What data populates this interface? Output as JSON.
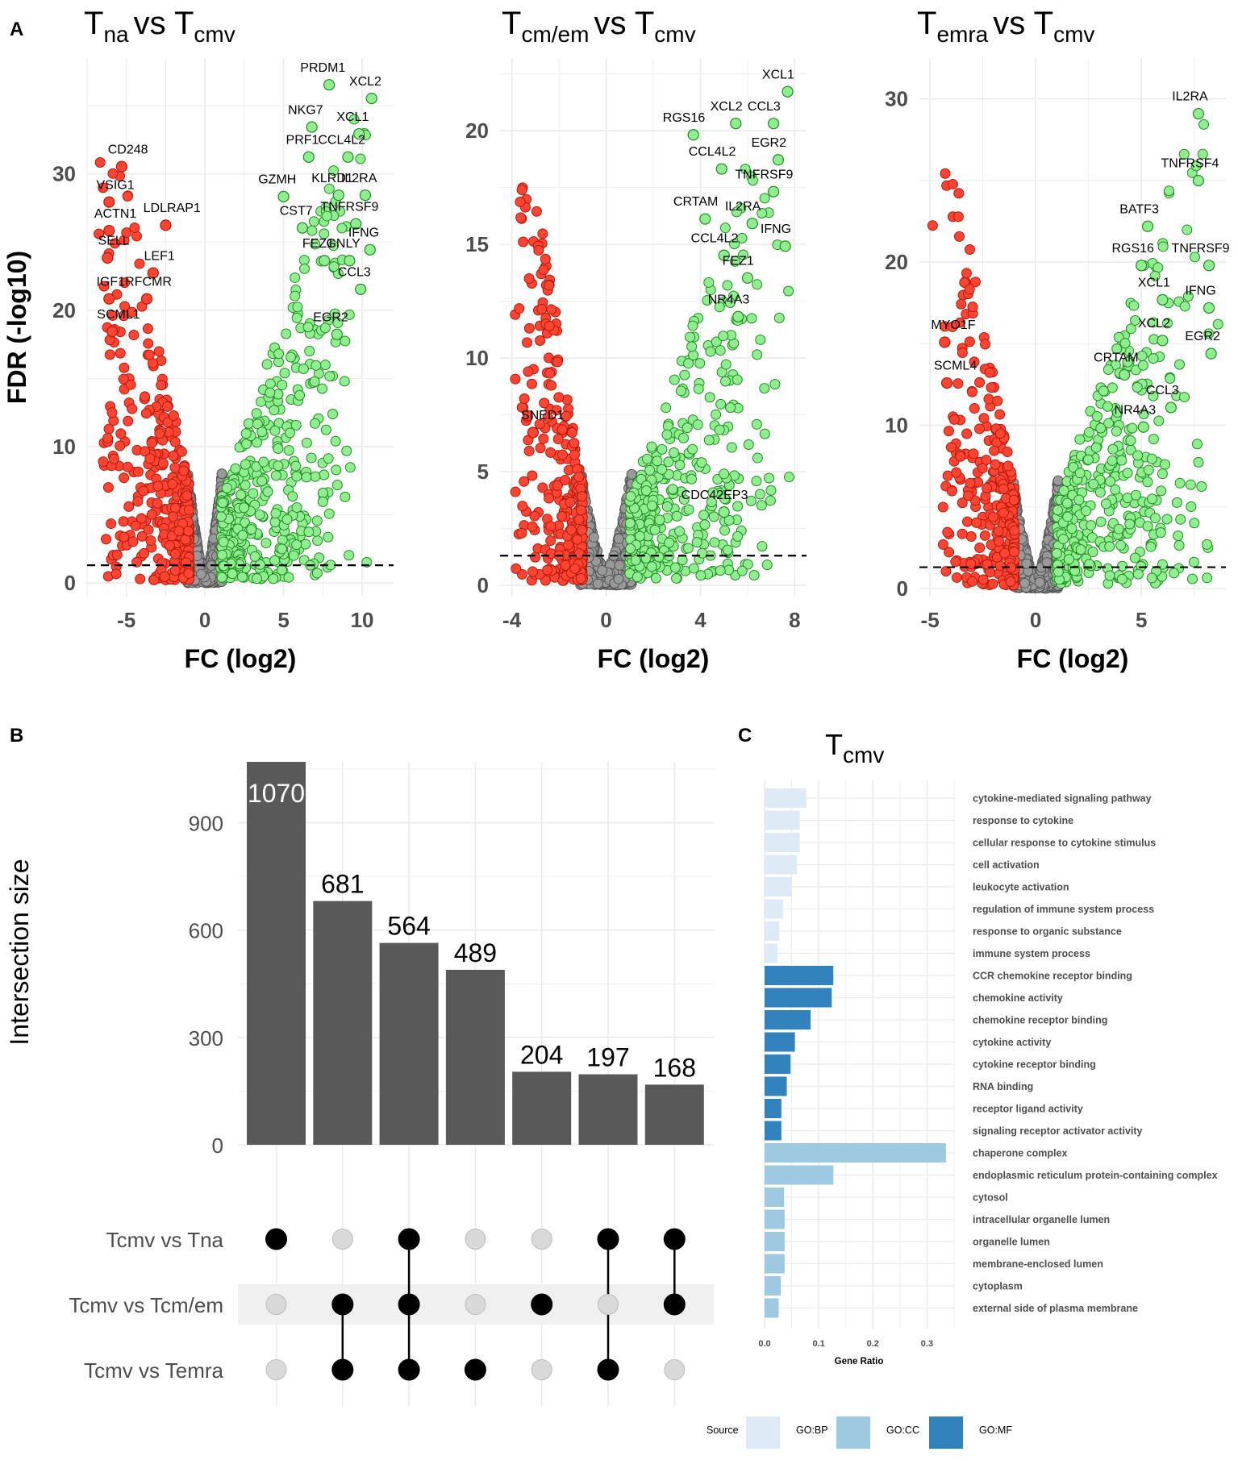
{
  "panel_labels": {
    "a": "A",
    "b": "B",
    "c": "C"
  },
  "volcano_common": {
    "ylabel": "FDR (-log10)",
    "xlabel": "FC (log2)",
    "colors": {
      "up": "#90EE90",
      "up_stroke": "#1e8c1e",
      "down": "#FF4433",
      "down_stroke": "#b01a0a",
      "ns": "#999999",
      "ns_stroke": "#555555",
      "threshold": "#000000"
    },
    "fdr_threshold": 1.3,
    "fc_threshold": 1
  },
  "chart_data": [
    {
      "type": "scatter",
      "id": "volcano-tna",
      "title": {
        "main": "T",
        "sub": "na",
        "vs": "vs T",
        "sub2": "cmv"
      },
      "xlim": [
        -7.5,
        12
      ],
      "ylim": [
        -1,
        38.5
      ],
      "xticks": [
        -5,
        0,
        5,
        10
      ],
      "yticks": [
        0,
        10,
        20,
        30
      ],
      "labels": [
        {
          "text": "PRDM1",
          "x": 7.5,
          "y": 37.5
        },
        {
          "text": "XCL2",
          "x": 10.2,
          "y": 36.5
        },
        {
          "text": "NKG7",
          "x": 6.4,
          "y": 34.4
        },
        {
          "text": "XCL1",
          "x": 9.4,
          "y": 33.9
        },
        {
          "text": "PRF1",
          "x": 6.2,
          "y": 32.2
        },
        {
          "text": "CCL4L2",
          "x": 8.7,
          "y": 32.2
        },
        {
          "text": "CD248",
          "x": -4.9,
          "y": 31.5
        },
        {
          "text": "GZMH",
          "x": 4.6,
          "y": 29.3
        },
        {
          "text": "KLRD1",
          "x": 8.1,
          "y": 29.4
        },
        {
          "text": "IL2RA",
          "x": 9.8,
          "y": 29.4
        },
        {
          "text": "VSIG1",
          "x": -5.7,
          "y": 28.9
        },
        {
          "text": "CST7",
          "x": 5.8,
          "y": 27.0
        },
        {
          "text": "TNFRSF9",
          "x": 9.2,
          "y": 27.3
        },
        {
          "text": "LDLRAP1",
          "x": -2.1,
          "y": 27.2
        },
        {
          "text": "ACTN1",
          "x": -5.7,
          "y": 26.8
        },
        {
          "text": "IFNG",
          "x": 10.1,
          "y": 25.4
        },
        {
          "text": "FEZ1",
          "x": 7.2,
          "y": 24.6
        },
        {
          "text": "GNLY",
          "x": 8.8,
          "y": 24.6
        },
        {
          "text": "SELL",
          "x": -5.8,
          "y": 24.8
        },
        {
          "text": "LEF1",
          "x": -2.9,
          "y": 23.7
        },
        {
          "text": "CCL3",
          "x": 9.5,
          "y": 22.5
        },
        {
          "text": "IGF1R",
          "x": -5.7,
          "y": 21.8
        },
        {
          "text": "FCMR",
          "x": -3.3,
          "y": 21.8
        },
        {
          "text": "SCML1",
          "x": -5.5,
          "y": 19.4
        },
        {
          "text": "EGR2",
          "x": 8.0,
          "y": 19.2
        }
      ]
    },
    {
      "type": "scatter",
      "id": "volcano-tcm",
      "title": {
        "main": "T",
        "sub": "cm/em",
        "vs": "vs T",
        "sub2": "cmv"
      },
      "xlim": [
        -4.5,
        8.5
      ],
      "ylim": [
        -0.5,
        23.2
      ],
      "xticks": [
        -4,
        0,
        4,
        8
      ],
      "yticks": [
        0,
        5,
        10,
        15,
        20
      ],
      "labels": [
        {
          "text": "XCL1",
          "x": 7.3,
          "y": 22.3
        },
        {
          "text": "XCL2",
          "x": 5.1,
          "y": 20.9
        },
        {
          "text": "CCL3",
          "x": 6.7,
          "y": 20.9
        },
        {
          "text": "RGS16",
          "x": 3.3,
          "y": 20.4
        },
        {
          "text": "EGR2",
          "x": 6.9,
          "y": 19.3
        },
        {
          "text": "CCL4L2",
          "x": 4.5,
          "y": 18.9
        },
        {
          "text": "TNFRSF9",
          "x": 6.7,
          "y": 17.9
        },
        {
          "text": "CRTAM",
          "x": 3.8,
          "y": 16.7
        },
        {
          "text": "IL2RA",
          "x": 5.8,
          "y": 16.5
        },
        {
          "text": "IFNG",
          "x": 7.2,
          "y": 15.5
        },
        {
          "text": "CCL4L2",
          "x": 4.6,
          "y": 15.1
        },
        {
          "text": "FEZ1",
          "x": 5.6,
          "y": 14.1
        },
        {
          "text": "NR4A3",
          "x": 5.2,
          "y": 12.4
        },
        {
          "text": "SNED1",
          "x": -2.7,
          "y": 7.3
        },
        {
          "text": "CDC42EP3",
          "x": 4.6,
          "y": 3.8
        }
      ]
    },
    {
      "type": "scatter",
      "id": "volcano-temra",
      "title": {
        "main": "T",
        "sub": "emra",
        "vs": "vs T",
        "sub2": "cmv"
      },
      "xlim": [
        -5.5,
        9
      ],
      "ylim": [
        -0.5,
        32.5
      ],
      "xticks": [
        -5,
        0,
        5
      ],
      "yticks": [
        0,
        10,
        20,
        30
      ],
      "labels": [
        {
          "text": "IL2RA",
          "x": 7.3,
          "y": 29.9
        },
        {
          "text": "TNFRSF4",
          "x": 7.3,
          "y": 25.8
        },
        {
          "text": "BATF3",
          "x": 4.9,
          "y": 23.0
        },
        {
          "text": "RGS16",
          "x": 4.6,
          "y": 20.6
        },
        {
          "text": "TNFRSF9",
          "x": 7.8,
          "y": 20.6
        },
        {
          "text": "XCL1",
          "x": 5.6,
          "y": 18.5
        },
        {
          "text": "IFNG",
          "x": 7.8,
          "y": 18.0
        },
        {
          "text": "MYO1F",
          "x": -3.9,
          "y": 15.9
        },
        {
          "text": "XCL2",
          "x": 5.6,
          "y": 16.0
        },
        {
          "text": "EGR2",
          "x": 7.9,
          "y": 15.2
        },
        {
          "text": "CRTAM",
          "x": 3.8,
          "y": 13.9
        },
        {
          "text": "SCML4",
          "x": -3.8,
          "y": 13.4
        },
        {
          "text": "CCL3",
          "x": 6.0,
          "y": 11.9
        },
        {
          "text": "NR4A3",
          "x": 4.7,
          "y": 10.7
        }
      ]
    },
    {
      "type": "bar",
      "id": "upset",
      "ylabel": "Intersection size",
      "ylim": [
        0,
        1070
      ],
      "yticks": [
        0,
        300,
        600,
        900
      ],
      "values": [
        1070,
        681,
        564,
        489,
        204,
        197,
        168
      ],
      "bar_color": "#595959",
      "sets": [
        "Tcmv vs Tna",
        "Tcmv vs Tcm/em",
        "Tcmv vs Temra"
      ],
      "membership": [
        [
          1,
          0,
          0
        ],
        [
          0,
          1,
          1
        ],
        [
          1,
          1,
          1
        ],
        [
          0,
          0,
          1
        ],
        [
          0,
          1,
          0
        ],
        [
          1,
          0,
          1
        ],
        [
          1,
          1,
          0
        ]
      ]
    },
    {
      "type": "bar",
      "id": "go-enrichment",
      "orientation": "horizontal",
      "title": {
        "main": "T",
        "sub": "cmv"
      },
      "xlabel": "Gene Ratio",
      "xlim": [
        0,
        0.35
      ],
      "xticks": [
        "0.0",
        "0.1",
        "0.2",
        "0.3"
      ],
      "legend_title": "Source",
      "legend": [
        {
          "name": "GO:BP",
          "color": "#deebf7"
        },
        {
          "name": "GO:CC",
          "color": "#9ecae1"
        },
        {
          "name": "GO:MF",
          "color": "#3182bd"
        }
      ],
      "terms": [
        {
          "name": "cytokine-mediated signaling pathway",
          "source": "GO:BP",
          "value": 0.077
        },
        {
          "name": "response to cytokine",
          "source": "GO:BP",
          "value": 0.065
        },
        {
          "name": "cellular response to cytokine stimulus",
          "source": "GO:BP",
          "value": 0.065
        },
        {
          "name": "cell activation",
          "source": "GO:BP",
          "value": 0.06
        },
        {
          "name": "leukocyte activation",
          "source": "GO:BP",
          "value": 0.05
        },
        {
          "name": "regulation of immune system process",
          "source": "GO:BP",
          "value": 0.034
        },
        {
          "name": "response to organic substance",
          "source": "GO:BP",
          "value": 0.027
        },
        {
          "name": "immune system process",
          "source": "GO:BP",
          "value": 0.024
        },
        {
          "name": "CCR chemokine receptor binding",
          "source": "GO:MF",
          "value": 0.127
        },
        {
          "name": "chemokine activity",
          "source": "GO:MF",
          "value": 0.124
        },
        {
          "name": "chemokine receptor binding",
          "source": "GO:MF",
          "value": 0.085
        },
        {
          "name": "cytokine activity",
          "source": "GO:MF",
          "value": 0.056
        },
        {
          "name": "cytokine receptor binding",
          "source": "GO:MF",
          "value": 0.048
        },
        {
          "name": "RNA binding",
          "source": "GO:MF",
          "value": 0.041
        },
        {
          "name": "receptor ligand activity",
          "source": "GO:MF",
          "value": 0.031
        },
        {
          "name": "signaling receptor activator activity",
          "source": "GO:MF",
          "value": 0.031
        },
        {
          "name": "chaperone complex",
          "source": "GO:CC",
          "value": 0.335
        },
        {
          "name": "endoplasmic reticulum protein-containing complex",
          "source": "GO:CC",
          "value": 0.127
        },
        {
          "name": "cytosol",
          "source": "GO:CC",
          "value": 0.036
        },
        {
          "name": "intracellular organelle lumen",
          "source": "GO:CC",
          "value": 0.037
        },
        {
          "name": "organelle lumen",
          "source": "GO:CC",
          "value": 0.037
        },
        {
          "name": "membrane-enclosed lumen",
          "source": "GO:CC",
          "value": 0.037
        },
        {
          "name": "cytoplasm",
          "source": "GO:CC",
          "value": 0.03
        },
        {
          "name": "external side of plasma membrane",
          "source": "GO:CC",
          "value": 0.026
        }
      ]
    }
  ]
}
